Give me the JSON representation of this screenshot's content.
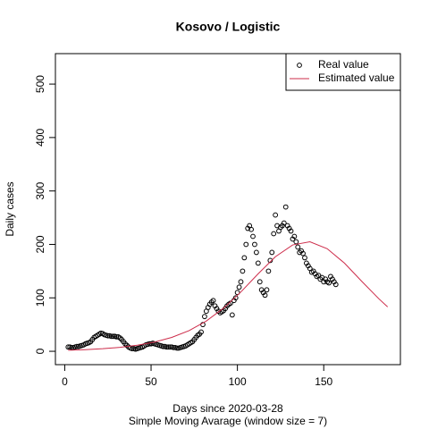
{
  "chart_data": {
    "type": "scatter",
    "title": "Kosovo / Logistic",
    "xlabel": "Days since 2020-03-28",
    "subtitle": "Simple Moving Avarage (window size = 7)",
    "ylabel": "Daily cases",
    "xlim": [
      -5.4,
      194.4
    ],
    "ylim": [
      -25,
      557
    ],
    "xticks": [
      0,
      50,
      100,
      150
    ],
    "yticks": [
      0,
      100,
      200,
      300,
      400,
      500
    ],
    "legend": "top-right",
    "series": [
      {
        "name": "Real value",
        "style": "points",
        "color": "#000000",
        "x": [
          2,
          3,
          4,
          5,
          6,
          7,
          8,
          9,
          10,
          11,
          12,
          13,
          14,
          15,
          16,
          17,
          18,
          19,
          20,
          21,
          22,
          23,
          24,
          25,
          26,
          27,
          28,
          29,
          30,
          31,
          32,
          33,
          34,
          35,
          36,
          37,
          38,
          39,
          40,
          41,
          42,
          43,
          44,
          45,
          46,
          47,
          48,
          49,
          50,
          51,
          52,
          53,
          54,
          55,
          56,
          57,
          58,
          59,
          60,
          61,
          62,
          63,
          64,
          65,
          66,
          67,
          68,
          69,
          70,
          71,
          72,
          73,
          74,
          75,
          76,
          77,
          78,
          79,
          80,
          81,
          82,
          83,
          84,
          85,
          86,
          87,
          88,
          89,
          90,
          91,
          92,
          93,
          94,
          95,
          96,
          97,
          98,
          99,
          100,
          101,
          102,
          103,
          104,
          105,
          106,
          107,
          108,
          109,
          110,
          111,
          112,
          113,
          114,
          115,
          116,
          117,
          118,
          119,
          120,
          121,
          122,
          123,
          124,
          125,
          126,
          127,
          128,
          129,
          130,
          131,
          132,
          133,
          134,
          135,
          136,
          137,
          138,
          139,
          140,
          141,
          142,
          143,
          144,
          145,
          146,
          147,
          148,
          149,
          150,
          151,
          152,
          153,
          154,
          155,
          156,
          157
        ],
        "values": [
          8,
          8,
          7,
          7,
          8,
          9,
          9,
          10,
          11,
          12,
          14,
          15,
          16,
          18,
          22,
          26,
          28,
          30,
          32,
          34,
          33,
          31,
          30,
          29,
          29,
          28,
          28,
          28,
          27,
          27,
          25,
          22,
          18,
          14,
          11,
          8,
          6,
          5,
          5,
          4,
          5,
          6,
          7,
          8,
          10,
          12,
          13,
          14,
          14,
          15,
          14,
          13,
          12,
          11,
          10,
          9,
          9,
          8,
          8,
          8,
          8,
          7,
          7,
          6,
          6,
          7,
          8,
          9,
          10,
          12,
          14,
          16,
          18,
          22,
          26,
          30,
          32,
          36,
          50,
          65,
          75,
          82,
          88,
          92,
          95,
          85,
          80,
          75,
          72,
          74,
          76,
          80,
          85,
          88,
          90,
          68,
          95,
          100,
          110,
          120,
          130,
          150,
          175,
          200,
          230,
          235,
          228,
          215,
          200,
          185,
          165,
          130,
          115,
          110,
          105,
          115,
          150,
          170,
          185,
          220,
          255,
          235,
          225,
          232,
          235,
          240,
          270,
          235,
          230,
          225,
          210,
          215,
          205,
          195,
          185,
          188,
          183,
          175,
          165,
          160,
          155,
          148,
          150,
          145,
          140,
          142,
          135,
          138,
          130,
          135,
          130,
          128,
          140,
          135,
          130,
          125
        ]
      },
      {
        "name": "Estimated value",
        "style": "line",
        "color": "#cd2c4a",
        "x": [
          2,
          12,
          22,
          32,
          42,
          52,
          62,
          72,
          82,
          92,
          102,
          112,
          122,
          132,
          142,
          152,
          162,
          172,
          182,
          187
        ],
        "values": [
          2,
          3.1,
          4.8,
          7.4,
          11.4,
          17.2,
          26,
          38.7,
          56.7,
          80.7,
          111,
          145,
          177,
          199,
          205,
          192,
          165,
          131,
          98,
          83
        ]
      }
    ]
  }
}
